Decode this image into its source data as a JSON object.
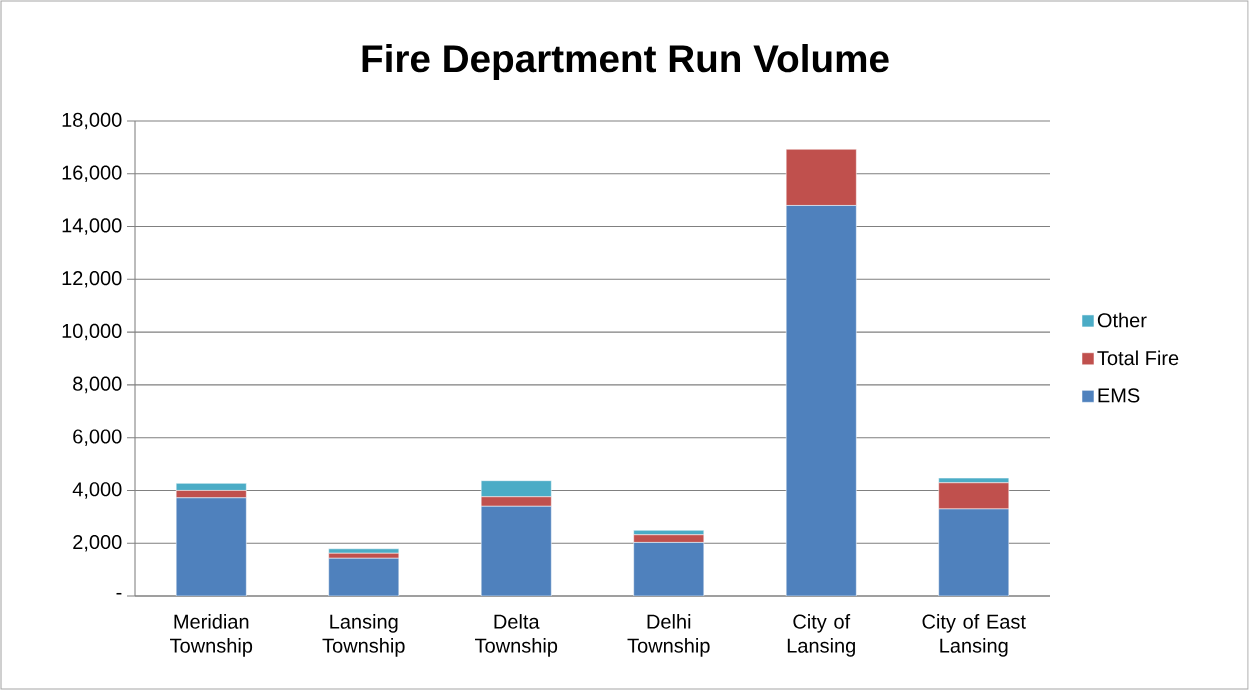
{
  "chart_data": {
    "type": "bar",
    "title": "Fire Department Run Volume",
    "stacked": true,
    "categories": [
      "Meridian Township",
      "Lansing Township",
      "Delta Township",
      "Delhi Township",
      "City of Lansing",
      "City of East Lansing"
    ],
    "series": [
      {
        "name": "EMS",
        "color": "#4f81bd",
        "values": [
          3720,
          1430,
          3400,
          2030,
          14800,
          3300
        ]
      },
      {
        "name": "Total Fire",
        "color": "#c0504d",
        "values": [
          280,
          190,
          360,
          290,
          2130,
          990
        ]
      },
      {
        "name": "Other",
        "color": "#4bacc6",
        "values": [
          270,
          170,
          610,
          170,
          0,
          180
        ]
      }
    ],
    "ylim": [
      0,
      18000
    ],
    "yticks": [
      {
        "value": 0,
        "label": "-"
      },
      {
        "value": 2000,
        "label": "2,000"
      },
      {
        "value": 4000,
        "label": "4,000"
      },
      {
        "value": 6000,
        "label": "6,000"
      },
      {
        "value": 8000,
        "label": "8,000"
      },
      {
        "value": 10000,
        "label": "10,000"
      },
      {
        "value": 12000,
        "label": "12,000"
      },
      {
        "value": 14000,
        "label": "14,000"
      },
      {
        "value": 16000,
        "label": "16,000"
      },
      {
        "value": 18000,
        "label": "18,000"
      }
    ],
    "grid": "y",
    "legend": "right"
  }
}
